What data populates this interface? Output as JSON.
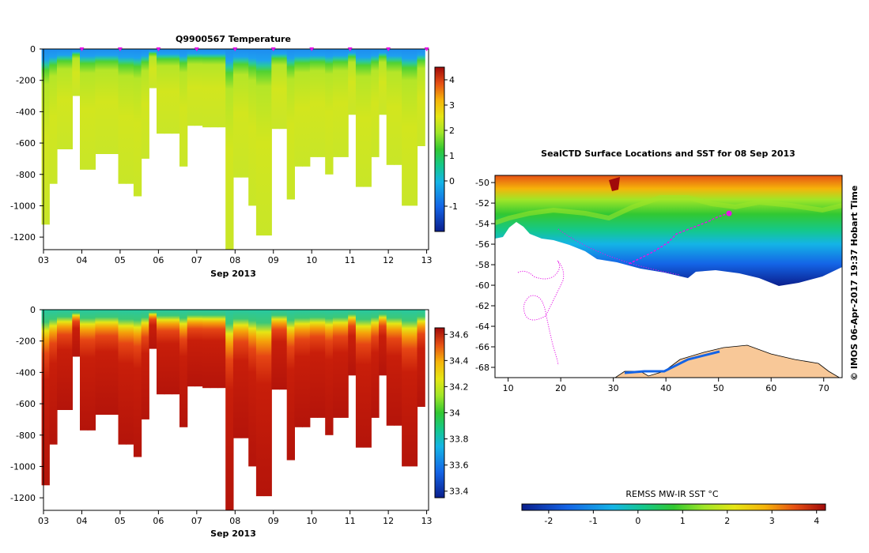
{
  "chart_data": [
    {
      "type": "heatmap",
      "title": "Q9900567  Temperature",
      "xlabel": "Sep 2013",
      "x_ticks": [
        "03",
        "04",
        "05",
        "06",
        "07",
        "08",
        "09",
        "10",
        "11",
        "12",
        "13"
      ],
      "y_ticks": [
        "0",
        "-200",
        "-400",
        "-600",
        "-800",
        "-1000",
        "-1200"
      ],
      "ylim": [
        -1280,
        0
      ],
      "xlim": [
        3,
        13.05
      ],
      "colorbar": {
        "min": -2,
        "max": 4.5,
        "ticks": [
          "4",
          "3",
          "2",
          "1",
          "0",
          "-1"
        ]
      },
      "profile_times": [
        3.05,
        3.25,
        3.45,
        3.65,
        3.85,
        4.05,
        4.25,
        4.45,
        4.65,
        4.85,
        5.05,
        5.25,
        5.45,
        5.65,
        5.85,
        6.05,
        6.25,
        6.45,
        6.65,
        6.85,
        7.05,
        7.25,
        7.45,
        7.65,
        7.85,
        8.05,
        8.25,
        8.45,
        8.65,
        8.85,
        9.05,
        9.25,
        9.45,
        9.65,
        9.85,
        10.05,
        10.25,
        10.45,
        10.65,
        10.85,
        11.05,
        11.25,
        11.45,
        11.65,
        11.85,
        12.05,
        12.25,
        12.45,
        12.65,
        12.85
      ],
      "profile_depths": [
        -1120,
        -860,
        -640,
        -640,
        -300,
        -770,
        -770,
        -670,
        -670,
        -670,
        -860,
        -860,
        -940,
        -700,
        -250,
        -540,
        -540,
        -540,
        -750,
        -490,
        -490,
        -500,
        -500,
        -500,
        -1280,
        -820,
        -820,
        -1000,
        -1190,
        -1190,
        -510,
        -510,
        -960,
        -750,
        -750,
        -690,
        -690,
        -800,
        -690,
        -690,
        -420,
        -880,
        -880,
        -690,
        -420,
        -740,
        -740,
        -1000,
        -1000,
        -620
      ],
      "surface_marker_times": [
        4,
        5,
        6,
        7,
        8,
        9,
        10,
        11,
        12,
        13
      ]
    },
    {
      "type": "heatmap",
      "title": "",
      "xlabel": "Sep 2013",
      "x_ticks": [
        "03",
        "04",
        "05",
        "06",
        "07",
        "08",
        "09",
        "10",
        "11",
        "12",
        "13"
      ],
      "y_ticks": [
        "0",
        "-200",
        "-400",
        "-600",
        "-800",
        "-1000",
        "-1200"
      ],
      "ylim": [
        -1280,
        0
      ],
      "xlim": [
        3,
        13.05
      ],
      "colorbar": {
        "min": 33.35,
        "max": 34.65,
        "ticks": [
          "34.6",
          "34.4",
          "34.2",
          "34",
          "33.8",
          "33.6",
          "33.4"
        ]
      }
    },
    {
      "type": "heatmap",
      "title": "SealCTD Surface Locations and SST for 08 Sep 2013",
      "x_ticks": [
        "10",
        "20",
        "30",
        "40",
        "50",
        "60",
        "70"
      ],
      "y_ticks": [
        "-50",
        "-52",
        "-54",
        "-56",
        "-58",
        "-60",
        "-62",
        "-64",
        "-66",
        "-68"
      ],
      "xlim": [
        7.5,
        73.5
      ],
      "ylim": [
        -69,
        -49.3
      ],
      "colorbar_label": "REMSS MW-IR SST °C",
      "colorbar": {
        "min": -2.6,
        "max": 4.2,
        "ticks": [
          "-2",
          "-1",
          "0",
          "1",
          "2",
          "3",
          "4"
        ]
      },
      "track": [
        [
          52,
          -53
        ],
        [
          50,
          -53.3
        ],
        [
          48,
          -53.8
        ],
        [
          46,
          -54.2
        ],
        [
          44,
          -54.6
        ],
        [
          42,
          -55
        ],
        [
          40.5,
          -55.8
        ],
        [
          39,
          -56.3
        ],
        [
          37,
          -56.9
        ],
        [
          35,
          -57.4
        ],
        [
          33,
          -57.9
        ]
      ],
      "current_position": [
        52,
        -53
      ]
    }
  ],
  "credit": "© IMOS 06-Apr-2017 19:37 Hobart Time"
}
